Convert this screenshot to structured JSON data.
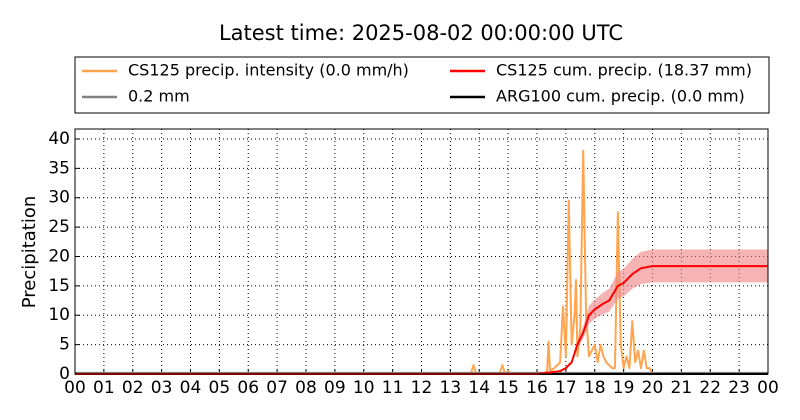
{
  "chart_data": {
    "type": "line",
    "title": "Latest time: 2025-08-02 00:00:00 UTC",
    "y_label": "Precipitation",
    "xlim": [
      0,
      24
    ],
    "ylim": [
      0,
      41.7
    ],
    "xticks": [
      {
        "value": 0,
        "label": "00"
      },
      {
        "value": 1,
        "label": "01"
      },
      {
        "value": 2,
        "label": "02"
      },
      {
        "value": 3,
        "label": "03"
      },
      {
        "value": 4,
        "label": "04"
      },
      {
        "value": 5,
        "label": "05"
      },
      {
        "value": 6,
        "label": "06"
      },
      {
        "value": 7,
        "label": "07"
      },
      {
        "value": 8,
        "label": "08"
      },
      {
        "value": 9,
        "label": "09"
      },
      {
        "value": 10,
        "label": "10"
      },
      {
        "value": 11,
        "label": "11"
      },
      {
        "value": 12,
        "label": "12"
      },
      {
        "value": 13,
        "label": "13"
      },
      {
        "value": 14,
        "label": "14"
      },
      {
        "value": 15,
        "label": "15"
      },
      {
        "value": 16,
        "label": "16"
      },
      {
        "value": 17,
        "label": "17"
      },
      {
        "value": 18,
        "label": "18"
      },
      {
        "value": 19,
        "label": "19"
      },
      {
        "value": 20,
        "label": "20"
      },
      {
        "value": 21,
        "label": "21"
      },
      {
        "value": 22,
        "label": "22"
      },
      {
        "value": 23,
        "label": "23"
      },
      {
        "value": 24,
        "label": "00"
      }
    ],
    "yticks": [
      0,
      5,
      10,
      15,
      20,
      25,
      30,
      35,
      40
    ],
    "grid": true,
    "series": [
      {
        "name": "CS125 precip. intensity (0.0 mm/h)",
        "color": "#ffa54f",
        "x": [
          0,
          13.7,
          13.8,
          13.9,
          14.7,
          14.8,
          14.9,
          15.0,
          15.1,
          16.2,
          16.35,
          16.4,
          16.45,
          16.6,
          16.8,
          16.9,
          17.0,
          17.1,
          17.2,
          17.3,
          17.35,
          17.4,
          17.5,
          17.6,
          17.7,
          17.8,
          17.9,
          18.0,
          18.1,
          18.2,
          18.3,
          18.4,
          18.6,
          18.7,
          18.8,
          18.9,
          19.0,
          19.1,
          19.2,
          19.3,
          19.4,
          19.5,
          19.6,
          19.7,
          19.8,
          19.9,
          20.0,
          24
        ],
        "values": [
          0,
          0,
          1.5,
          0,
          0,
          1.5,
          0,
          0.5,
          0,
          0,
          0.5,
          5.5,
          0.5,
          1,
          2,
          11.5,
          3,
          29.5,
          5,
          10,
          16,
          3,
          8,
          38,
          10,
          3,
          4,
          5,
          2,
          5,
          3,
          2,
          1,
          1,
          27.5,
          5,
          1,
          3,
          1,
          9,
          2,
          4,
          1,
          4,
          1,
          1,
          0,
          0
        ]
      },
      {
        "name": "0.2 mm",
        "color": "#808080",
        "x": [
          0,
          24
        ],
        "values": [
          0.2,
          0.2
        ]
      },
      {
        "name": "CS125 cum. precip. (18.37 mm)",
        "color": "#ff0000",
        "band_color": "#f08080",
        "x": [
          0,
          16,
          16.5,
          16.8,
          17.0,
          17.2,
          17.4,
          17.6,
          17.8,
          18.0,
          18.3,
          18.5,
          18.8,
          19.0,
          19.3,
          19.6,
          20.0,
          24
        ],
        "values": [
          0,
          0,
          0.3,
          0.5,
          1,
          2,
          5,
          7,
          10,
          11,
          12,
          12.5,
          15,
          15.5,
          17,
          18,
          18.37,
          18.37
        ],
        "upper": [
          0,
          0,
          0.35,
          0.6,
          1.2,
          2.3,
          5.8,
          8.1,
          11.6,
          12.7,
          13.9,
          14.5,
          17.3,
          17.9,
          19.6,
          20.8,
          21.2,
          21.2
        ],
        "lower": [
          0,
          0,
          0.25,
          0.4,
          0.85,
          1.7,
          4.3,
          6,
          8.5,
          9.4,
          10.2,
          10.6,
          12.8,
          13.2,
          14.5,
          15.3,
          15.6,
          15.6
        ]
      },
      {
        "name": "ARG100 cum. precip. (0.0 mm)",
        "color": "#000000",
        "x": [
          0,
          24
        ],
        "values": [
          0,
          0
        ]
      }
    ]
  }
}
